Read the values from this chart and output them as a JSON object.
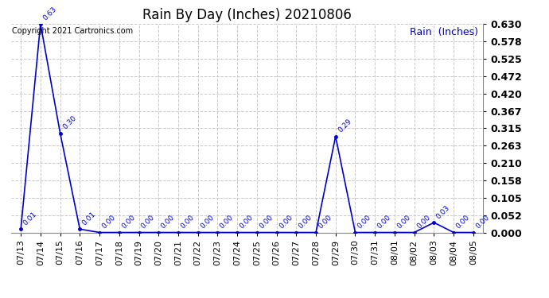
{
  "title": "Rain By Day (Inches) 20210806",
  "legend_label": "Rain  (Inches)",
  "copyright_text": "Copyright 2021 Cartronics.com",
  "line_color": "#0000cc",
  "label_color": "#0000cc",
  "background_color": "#ffffff",
  "grid_color": "#c8c8c8",
  "dates": [
    "07/13",
    "07/14",
    "07/15",
    "07/16",
    "07/17",
    "07/18",
    "07/19",
    "07/20",
    "07/21",
    "07/22",
    "07/23",
    "07/24",
    "07/25",
    "07/26",
    "07/27",
    "07/28",
    "07/29",
    "07/30",
    "07/31",
    "08/01",
    "08/02",
    "08/03",
    "08/04",
    "08/05"
  ],
  "values": [
    0.01,
    0.63,
    0.3,
    0.01,
    0.0,
    0.0,
    0.0,
    0.0,
    0.0,
    0.0,
    0.0,
    0.0,
    0.0,
    0.0,
    0.0,
    0.0,
    0.29,
    0.0,
    0.0,
    0.0,
    0.0,
    0.03,
    0.0,
    0.0
  ],
  "ylim": [
    0.0,
    0.63
  ],
  "yticks": [
    0.0,
    0.052,
    0.105,
    0.158,
    0.21,
    0.263,
    0.315,
    0.367,
    0.42,
    0.472,
    0.525,
    0.578,
    0.63
  ],
  "marker": "o",
  "marker_size": 2.5,
  "line_width": 1.2,
  "title_fontsize": 12,
  "tick_fontsize": 8,
  "ytick_fontsize": 9,
  "label_fontsize": 9,
  "annotation_fontsize": 6.5,
  "copyright_fontsize": 7
}
